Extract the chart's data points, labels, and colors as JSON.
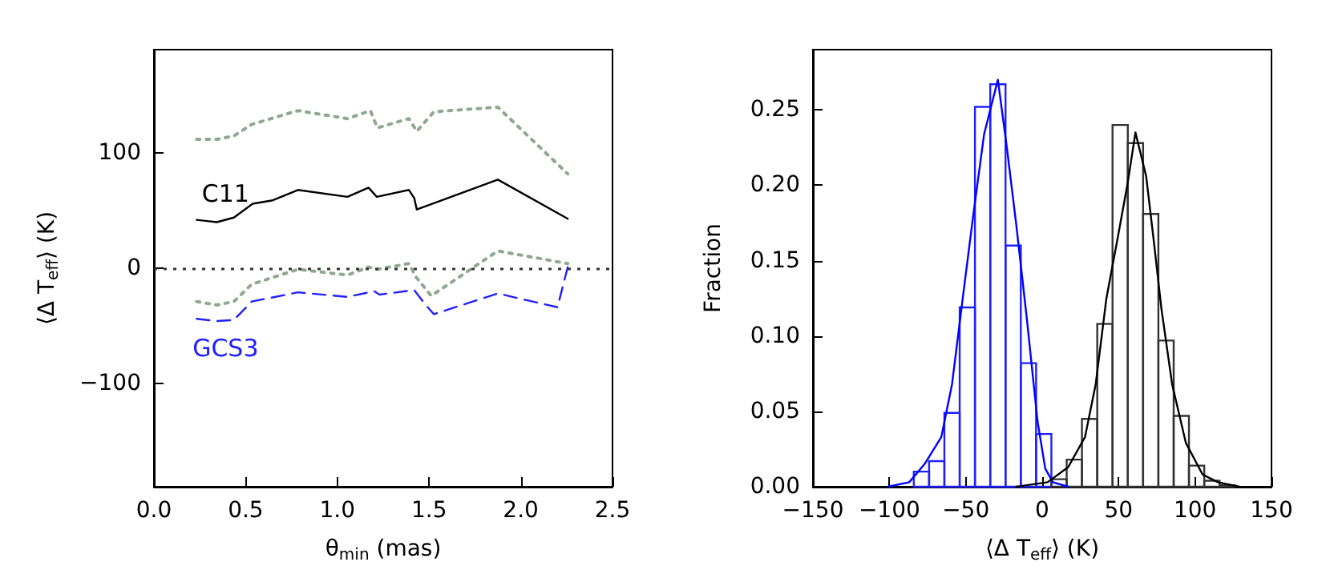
{
  "chart_data": [
    {
      "type": "line",
      "xlabel": "θ$_{min}$ (mas)",
      "ylabel": "⟨Δ T$_{eff}$⟩ (K)",
      "xlim": [
        0,
        2.5
      ],
      "xticks": [
        {
          "value": 0,
          "label": "0.0"
        },
        0.5,
        {
          "value": 1,
          "label": "1.0"
        },
        1.5,
        {
          "value": 2,
          "label": "2.0"
        },
        2.5
      ],
      "ylim": [
        -190,
        190
      ],
      "yticks": [
        {
          "value": -100,
          "label": "−100"
        },
        0,
        100
      ],
      "grid": false,
      "marker": "none",
      "ref_lines": [
        {
          "axis": "y",
          "value": 0,
          "color": "#333333",
          "line_style": "dotted"
        }
      ],
      "series": [
        {
          "color": "#8fa88f",
          "line_style": "dotted",
          "x": [
            0.233,
            0.343,
            0.436,
            0.533,
            0.785,
            1.055,
            1.18,
            1.218,
            1.39,
            1.433,
            1.526,
            1.875,
            2.256
          ],
          "values": [
            112,
            112,
            115,
            125,
            137,
            130,
            137,
            122,
            130,
            119,
            136,
            140,
            82
          ]
        },
        {
          "name": "C11",
          "color": "#000000",
          "line_style": "solid",
          "x": [
            0.233,
            0.343,
            0.436,
            0.538,
            0.648,
            0.785,
            1.055,
            1.17,
            1.215,
            1.39,
            1.419,
            1.433,
            1.875,
            2.256
          ],
          "values": [
            42,
            40,
            44,
            56,
            59,
            68,
            62,
            70,
            62,
            68,
            61,
            51,
            77,
            43
          ]
        },
        {
          "color": "#8fa88f",
          "line_style": "dotted",
          "x": [
            0.233,
            0.343,
            0.436,
            0.533,
            0.785,
            1.055,
            1.17,
            1.215,
            1.39,
            1.43,
            1.512,
            1.875,
            2.256
          ],
          "values": [
            -29,
            -32,
            -29,
            -14,
            -1,
            -6,
            1,
            -1,
            4,
            -8,
            -24,
            15,
            4
          ]
        },
        {
          "name": "GCS3",
          "color": "#2020ff",
          "line_style": "dashed",
          "x": [
            0.233,
            0.343,
            0.436,
            0.533,
            0.785,
            1.055,
            1.2,
            1.23,
            1.419,
            1.477,
            1.526,
            1.875,
            2.2,
            2.256
          ],
          "values": [
            -44,
            -46,
            -45,
            -29,
            -21,
            -25,
            -20,
            -23,
            -19,
            -31,
            -40,
            -22,
            -34,
            1
          ]
        }
      ]
    },
    {
      "type": "histogram",
      "xlabel": "⟨Δ T$_{eff}$⟩ (K)",
      "ylabel": "Fraction",
      "xlim": [
        -150,
        150
      ],
      "xticks": [
        {
          "value": -150,
          "label": "−150"
        },
        {
          "value": -100,
          "label": "−100"
        },
        {
          "value": -50,
          "label": "−50"
        },
        0,
        50,
        100,
        150
      ],
      "ylim": [
        0,
        0.29
      ],
      "yticks": [
        {
          "value": 0,
          "label": "0.00"
        },
        {
          "value": 0.05,
          "label": "0.05"
        },
        {
          "value": 0.1,
          "label": "0.10"
        },
        {
          "value": 0.15,
          "label": "0.15"
        },
        {
          "value": 0.2,
          "label": "0.20"
        },
        {
          "value": 0.25,
          "label": "0.25"
        }
      ],
      "grid": false,
      "series": [
        {
          "color": "#2020ff",
          "bins": [
            -84,
            -74,
            -64,
            -54,
            -44,
            -34,
            -24,
            -14,
            -4,
            6
          ],
          "values": [
            0.01,
            0.017,
            0.049,
            0.119,
            0.252,
            0.267,
            0.16,
            0.082,
            0.035
          ]
        },
        {
          "color": "#333333",
          "bins": [
            6,
            16,
            26,
            36,
            46,
            56,
            66,
            76,
            86,
            96,
            106,
            116,
            126
          ],
          "values": [
            0.005,
            0.018,
            0.045,
            0.108,
            0.24,
            0.228,
            0.181,
            0.097,
            0.047,
            0.014,
            0.004,
            0.001
          ]
        },
        {
          "type": "line",
          "color": "#0000ff",
          "x": [
            -101,
            -87,
            -77,
            -66,
            -59,
            -52,
            -45,
            -38,
            -33,
            -29,
            -23,
            -17,
            -10,
            -3,
            2,
            7,
            17
          ],
          "values": [
            0,
            0.003,
            0.015,
            0.033,
            0.068,
            0.125,
            0.181,
            0.234,
            0.254,
            0.27,
            0.224,
            0.174,
            0.111,
            0.043,
            0.012,
            0.003,
            0
          ]
        },
        {
          "type": "line",
          "color": "#000000",
          "x": [
            -17,
            3.5,
            17,
            28,
            35,
            42,
            49,
            56,
            61,
            68,
            73,
            78,
            85,
            94,
            105,
            115,
            129
          ],
          "values": [
            0,
            0.003,
            0.013,
            0.033,
            0.068,
            0.125,
            0.163,
            0.202,
            0.235,
            0.206,
            0.163,
            0.118,
            0.068,
            0.029,
            0.008,
            0.003,
            0
          ]
        }
      ]
    }
  ]
}
